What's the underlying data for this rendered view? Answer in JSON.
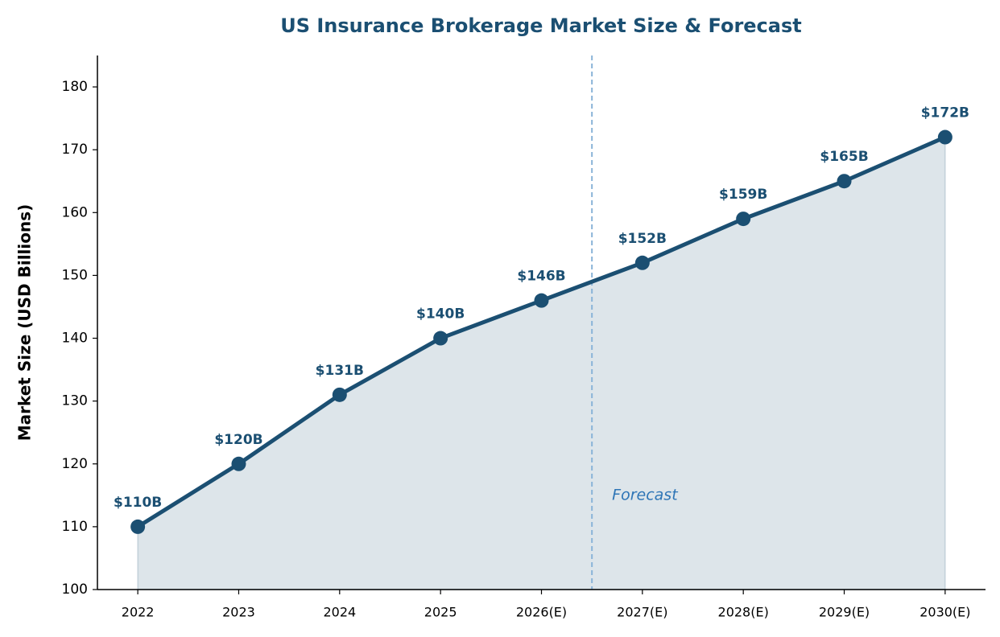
{
  "chart_data": {
    "type": "line",
    "title": "US Insurance Brokerage Market Size & Forecast",
    "y_label": "Market Size (USD Billions)",
    "categories": [
      "2022",
      "2023",
      "2024",
      "2025",
      "2026(E)",
      "2027(E)",
      "2028(E)",
      "2029(E)",
      "2030(E)"
    ],
    "values": [
      110,
      120,
      131,
      140,
      146,
      152,
      159,
      165,
      172
    ],
    "value_labels": [
      "$110B",
      "$120B",
      "$131B",
      "$140B",
      "$146B",
      "$152B",
      "$159B",
      "$165B",
      "$172B"
    ],
    "color": "#1b4f72",
    "area": true,
    "ylim": [
      100,
      185
    ],
    "yticks": [
      100,
      110,
      120,
      130,
      140,
      150,
      160,
      170,
      180
    ],
    "annotation": {
      "text": "Forecast",
      "after": "2026(E)"
    }
  }
}
